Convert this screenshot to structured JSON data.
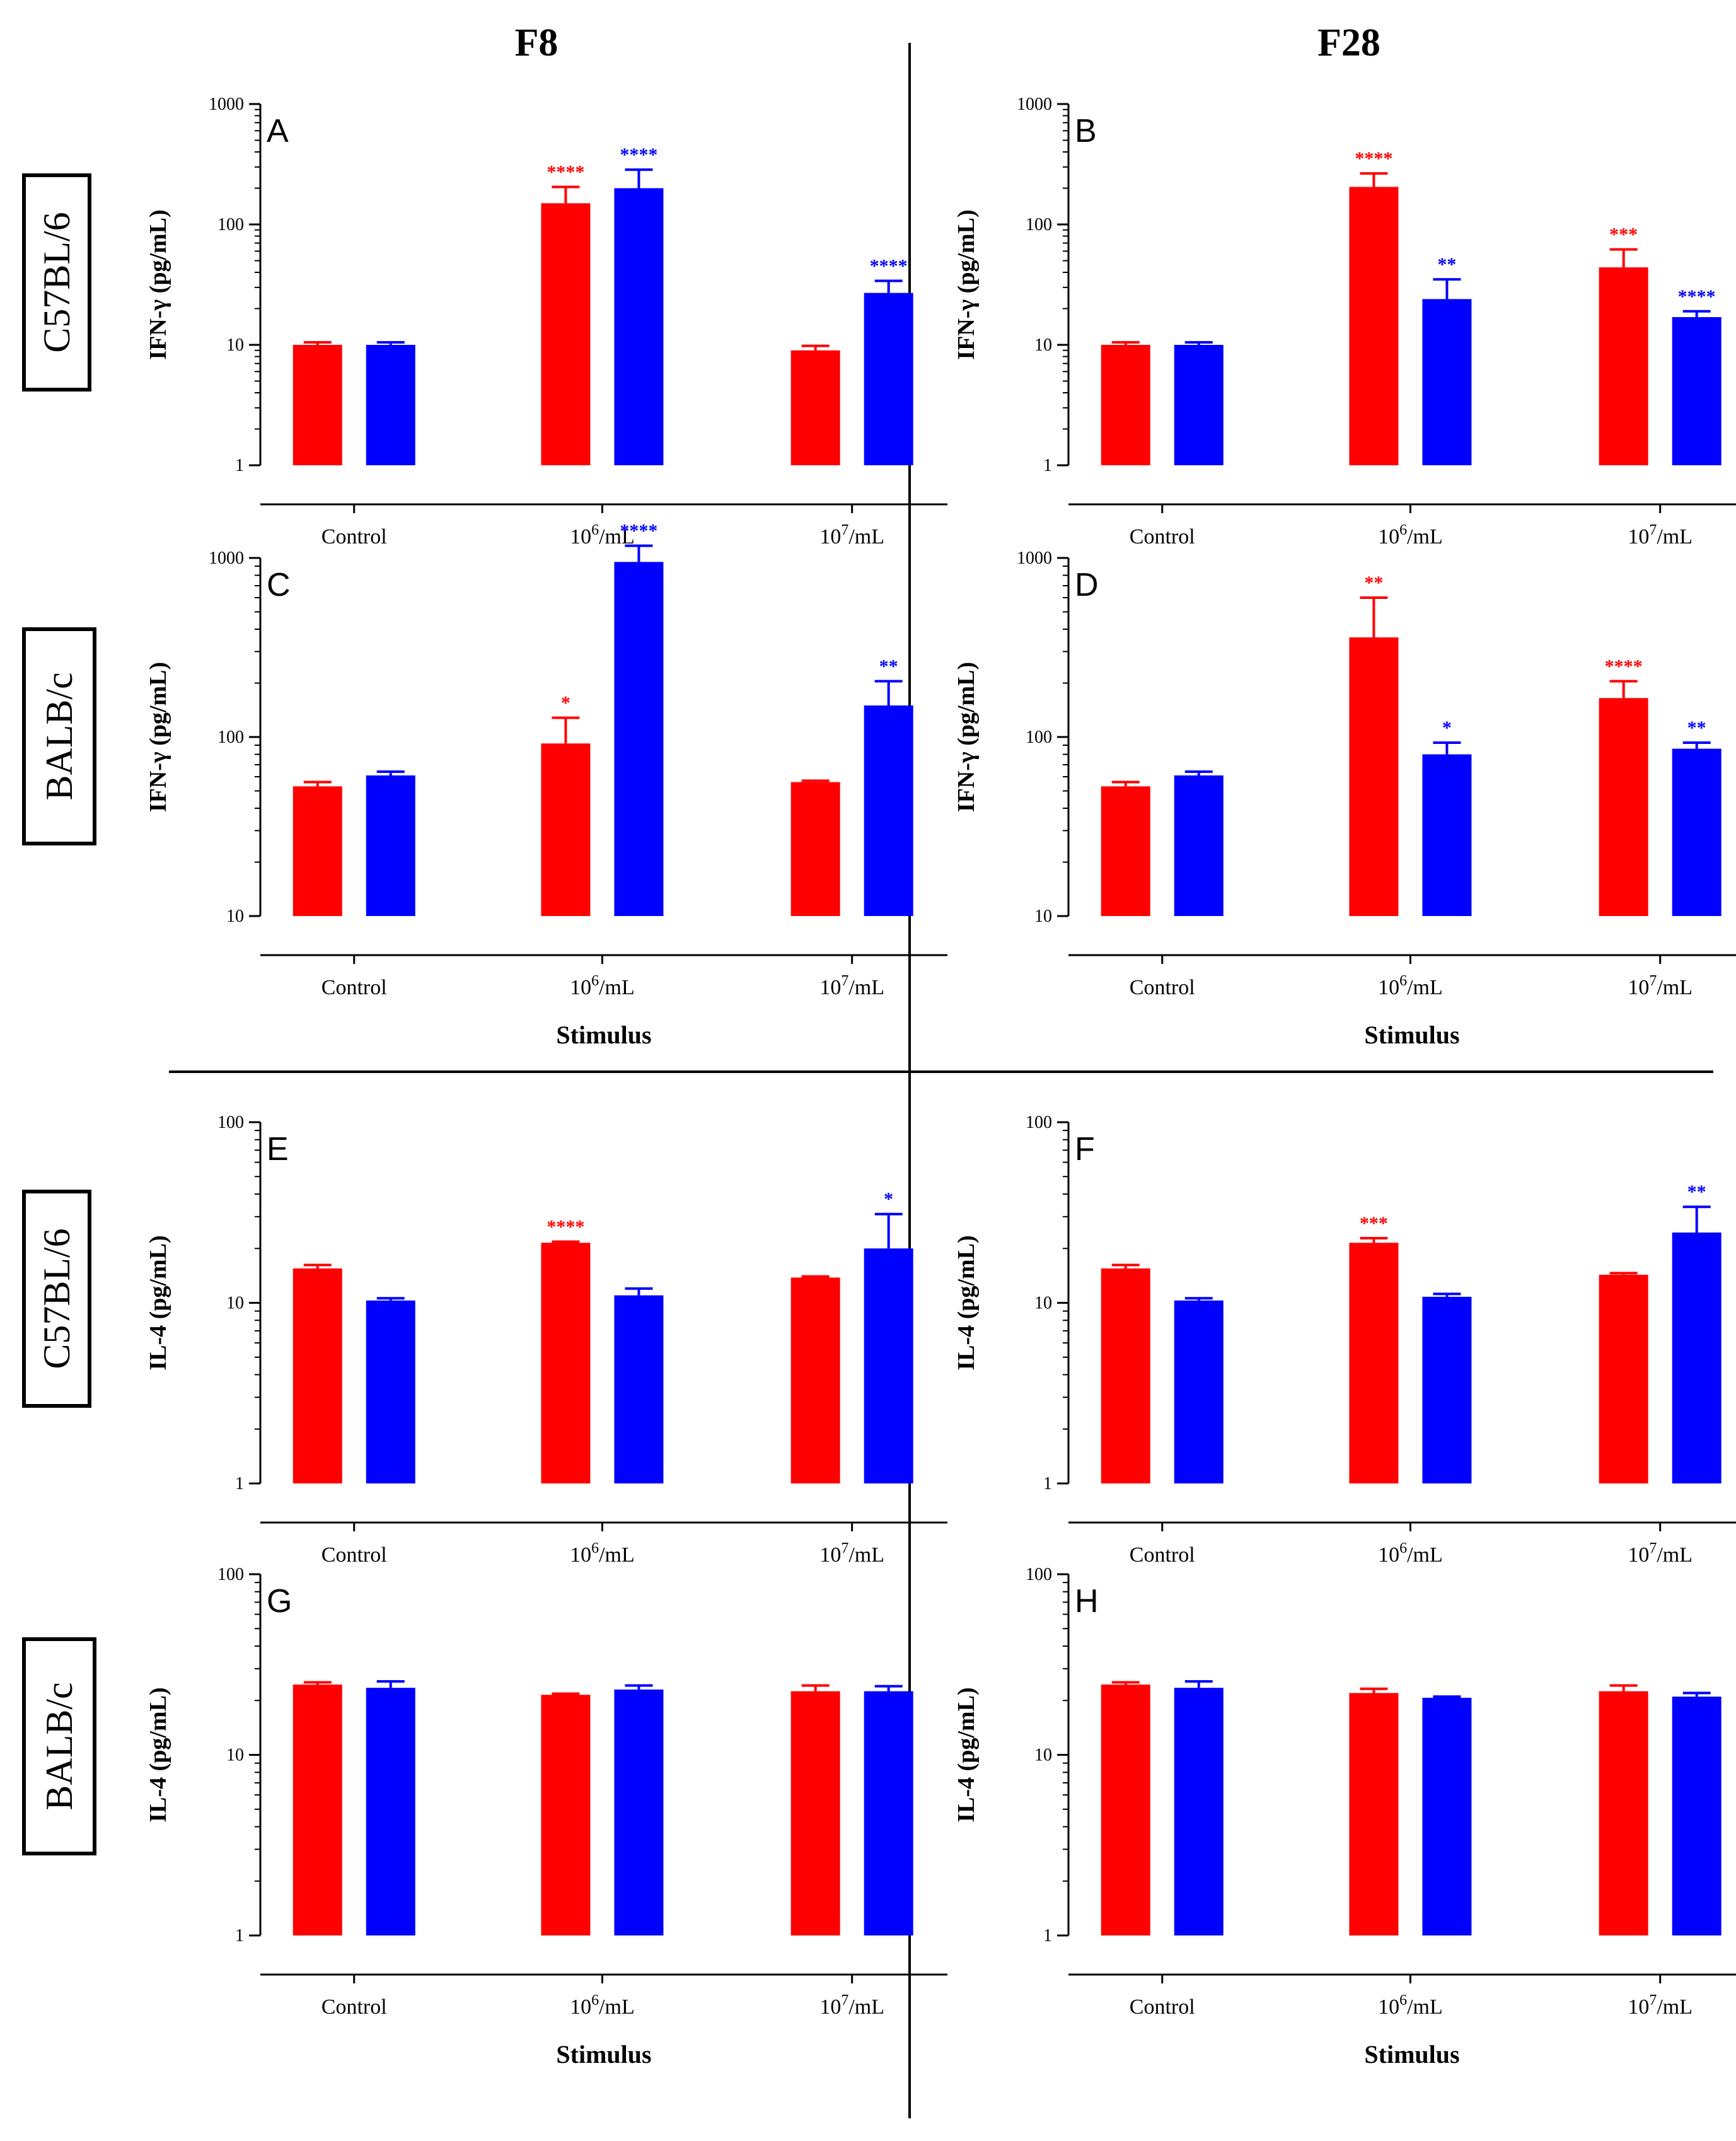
{
  "colors": {
    "red": "#ff0000",
    "blue": "#0000ff",
    "axis": "#000000"
  },
  "headers": {
    "left": "F8",
    "right": "F28"
  },
  "strains": [
    "C57BL/6",
    "BALB/c",
    "C57BL/6",
    "BALB/c"
  ],
  "categories": [
    "Control",
    "10",
    "10"
  ],
  "category_exponents": [
    "",
    "6",
    "7"
  ],
  "category_suffix": [
    "",
    "/mL",
    "/mL"
  ],
  "stimulus_label": "Stimulus",
  "chart_data": [
    {
      "id": "A",
      "type": "bar",
      "ylabel": "IFN-γ (pg/mL)",
      "yscale": "log",
      "ylim": [
        1,
        1000
      ],
      "yticks": [
        "1",
        "10",
        "100",
        "1000"
      ],
      "xlabel": "",
      "red": [
        10,
        150,
        9
      ],
      "red_err": [
        10.5,
        205,
        9.8
      ],
      "blue": [
        10,
        200,
        27
      ],
      "blue_err": [
        10.5,
        285,
        34
      ],
      "red_sig": [
        "",
        "****",
        ""
      ],
      "blue_sig": [
        "",
        "****",
        "****"
      ]
    },
    {
      "id": "B",
      "type": "bar",
      "ylabel": "IFN-γ (pg/mL)",
      "yscale": "log",
      "ylim": [
        1,
        1000
      ],
      "yticks": [
        "1",
        "10",
        "100",
        "1000"
      ],
      "xlabel": "",
      "red": [
        10,
        205,
        44
      ],
      "red_err": [
        10.5,
        265,
        62
      ],
      "blue": [
        10,
        24,
        17
      ],
      "blue_err": [
        10.5,
        35,
        19
      ],
      "red_sig": [
        "",
        "****",
        "***"
      ],
      "blue_sig": [
        "",
        "**",
        "****"
      ]
    },
    {
      "id": "C",
      "type": "bar",
      "ylabel": "IFN-γ (pg/mL)",
      "yscale": "log",
      "ylim": [
        10,
        1000
      ],
      "yticks": [
        "10",
        "100",
        "1000"
      ],
      "xlabel": "Stimulus",
      "red": [
        53,
        92,
        56
      ],
      "red_err": [
        56,
        128,
        57
      ],
      "blue": [
        61,
        950,
        150
      ],
      "blue_err": [
        64,
        1170,
        205
      ],
      "red_sig": [
        "",
        "*",
        ""
      ],
      "blue_sig": [
        "",
        "****",
        "**"
      ]
    },
    {
      "id": "D",
      "type": "bar",
      "ylabel": "IFN-γ (pg/mL)",
      "yscale": "log",
      "ylim": [
        10,
        1000
      ],
      "yticks": [
        "10",
        "100",
        "1000"
      ],
      "xlabel": "Stimulus",
      "red": [
        53,
        360,
        165
      ],
      "red_err": [
        56,
        600,
        205
      ],
      "blue": [
        61,
        80,
        86
      ],
      "blue_err": [
        64,
        93,
        93
      ],
      "red_sig": [
        "",
        "**",
        "****"
      ],
      "blue_sig": [
        "",
        "*",
        "**"
      ]
    },
    {
      "id": "E",
      "type": "bar",
      "ylabel": "IL-4 (pg/mL)",
      "yscale": "log",
      "ylim": [
        1,
        100
      ],
      "yticks": [
        "1",
        "10",
        "100"
      ],
      "xlabel": "",
      "red": [
        15.5,
        21.5,
        13.8
      ],
      "red_err": [
        16.2,
        21.8,
        14.0
      ],
      "blue": [
        10.3,
        11,
        20
      ],
      "blue_err": [
        10.6,
        12,
        31
      ],
      "red_sig": [
        "",
        "****",
        ""
      ],
      "blue_sig": [
        "",
        "",
        "*"
      ]
    },
    {
      "id": "F",
      "type": "bar",
      "ylabel": "IL-4 (pg/mL)",
      "yscale": "log",
      "ylim": [
        1,
        100
      ],
      "yticks": [
        "1",
        "10",
        "100"
      ],
      "xlabel": "",
      "red": [
        15.5,
        21.5,
        14.3
      ],
      "red_err": [
        16.2,
        22.8,
        14.6
      ],
      "blue": [
        10.3,
        10.8,
        24.5
      ],
      "blue_err": [
        10.6,
        11.2,
        34
      ],
      "red_sig": [
        "",
        "***",
        ""
      ],
      "blue_sig": [
        "",
        "",
        "**"
      ]
    },
    {
      "id": "G",
      "type": "bar",
      "ylabel": "IL-4 (pg/mL)",
      "yscale": "log",
      "ylim": [
        1,
        100
      ],
      "yticks": [
        "1",
        "10",
        "100"
      ],
      "xlabel": "Stimulus",
      "red": [
        24.5,
        21.5,
        22.5
      ],
      "red_err": [
        25.2,
        21.8,
        24.2
      ],
      "blue": [
        23.5,
        23,
        22.5
      ],
      "blue_err": [
        25.5,
        24.2,
        24
      ],
      "red_sig": [
        "",
        "",
        ""
      ],
      "blue_sig": [
        "",
        "",
        ""
      ]
    },
    {
      "id": "H",
      "type": "bar",
      "ylabel": "IL-4 (pg/mL)",
      "yscale": "log",
      "ylim": [
        1,
        100
      ],
      "yticks": [
        "1",
        "10",
        "100"
      ],
      "xlabel": "Stimulus",
      "red": [
        24.5,
        22,
        22.5
      ],
      "red_err": [
        25.2,
        23.2,
        24.2
      ],
      "blue": [
        23.5,
        20.7,
        21
      ],
      "blue_err": [
        25.5,
        21.0,
        22
      ],
      "red_sig": [
        "",
        "",
        ""
      ],
      "blue_sig": [
        "",
        "",
        ""
      ]
    }
  ]
}
